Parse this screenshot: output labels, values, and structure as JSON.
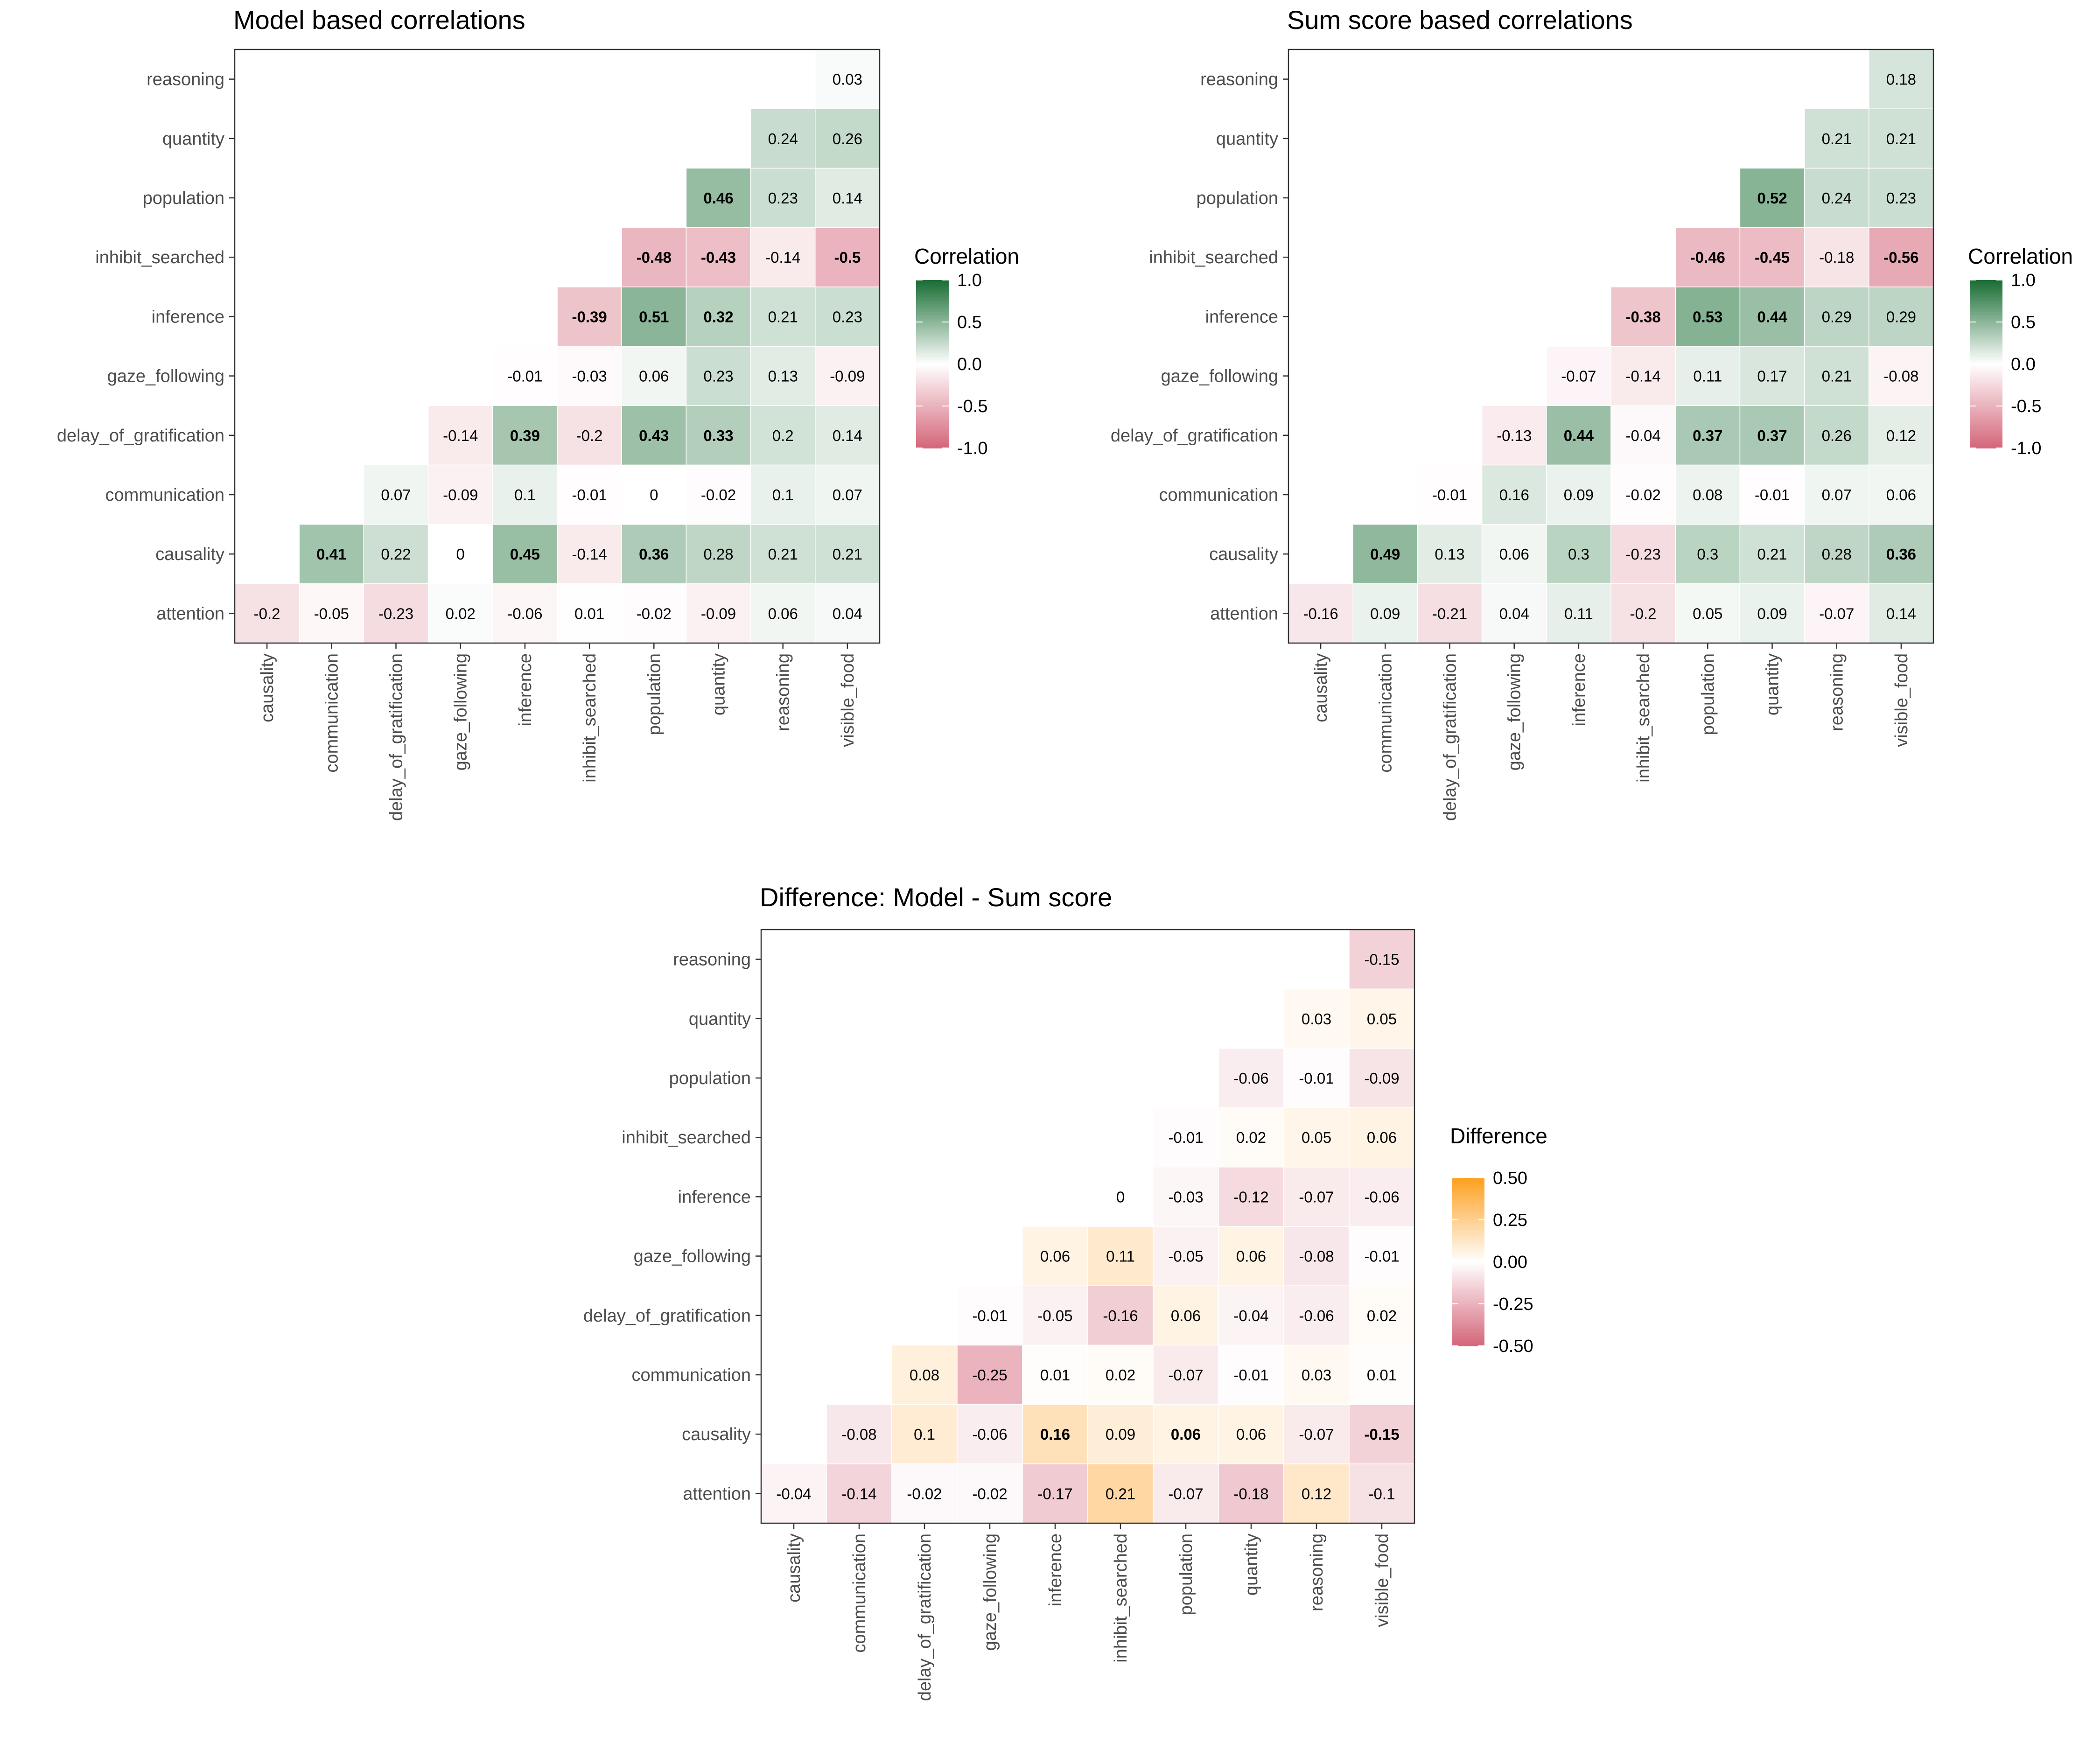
{
  "chart_data": [
    {
      "type": "heatmap",
      "title": "Model based correlations",
      "x_categories": [
        "causality",
        "communication",
        "delay_of_gratification",
        "gaze_following",
        "inference",
        "inhibit_searched",
        "population",
        "quantity",
        "reasoning",
        "visible_food"
      ],
      "y_categories": [
        "attention",
        "causality",
        "communication",
        "delay_of_gratification",
        "gaze_following",
        "inference",
        "inhibit_searched",
        "population",
        "quantity",
        "reasoning"
      ],
      "values": [
        [
          -0.2,
          -0.05,
          -0.23,
          0.02,
          -0.06,
          0.01,
          -0.02,
          -0.09,
          0.06,
          0.04
        ],
        [
          null,
          0.41,
          0.22,
          0,
          0.45,
          -0.14,
          0.36,
          0.28,
          0.21,
          0.21
        ],
        [
          null,
          null,
          0.07,
          -0.09,
          0.1,
          -0.01,
          0,
          -0.02,
          0.1,
          0.07
        ],
        [
          null,
          null,
          null,
          -0.14,
          0.39,
          -0.2,
          0.43,
          0.33,
          0.2,
          0.14
        ],
        [
          null,
          null,
          null,
          null,
          -0.01,
          -0.03,
          0.06,
          0.23,
          0.13,
          -0.09
        ],
        [
          null,
          null,
          null,
          null,
          null,
          -0.39,
          0.51,
          0.32,
          0.21,
          0.23
        ],
        [
          null,
          null,
          null,
          null,
          null,
          null,
          -0.48,
          -0.43,
          -0.14,
          -0.5
        ],
        [
          null,
          null,
          null,
          null,
          null,
          null,
          null,
          0.46,
          0.23,
          0.14
        ],
        [
          null,
          null,
          null,
          null,
          null,
          null,
          null,
          null,
          0.24,
          0.26
        ],
        [
          null,
          null,
          null,
          null,
          null,
          null,
          null,
          null,
          null,
          0.03
        ]
      ],
      "bold": [
        [],
        [
          1,
          4,
          6
        ],
        [],
        [
          4,
          6,
          7
        ],
        [],
        [
          5,
          6,
          7
        ],
        [
          6,
          7,
          9
        ],
        [
          7
        ],
        [],
        []
      ],
      "legend": {
        "title": "Correlation",
        "ticks": [
          "1.0",
          "0.5",
          "0.0",
          "-0.5",
          "-1.0"
        ],
        "tick_values": [
          1.0,
          0.5,
          0.0,
          -0.5,
          -1.0
        ],
        "range": [
          -1,
          1
        ],
        "position": "right"
      },
      "colors": {
        "low": "#d4677a",
        "mid": "#ffffff",
        "high": "#1a6e35"
      },
      "grid": false
    },
    {
      "type": "heatmap",
      "title": "Sum score based correlations",
      "x_categories": [
        "causality",
        "communication",
        "delay_of_gratification",
        "gaze_following",
        "inference",
        "inhibit_searched",
        "population",
        "quantity",
        "reasoning",
        "visible_food"
      ],
      "y_categories": [
        "attention",
        "causality",
        "communication",
        "delay_of_gratification",
        "gaze_following",
        "inference",
        "inhibit_searched",
        "population",
        "quantity",
        "reasoning"
      ],
      "values": [
        [
          -0.16,
          0.09,
          -0.21,
          0.04,
          0.11,
          -0.2,
          0.05,
          0.09,
          -0.07,
          0.14
        ],
        [
          null,
          0.49,
          0.13,
          0.06,
          0.3,
          -0.23,
          0.3,
          0.21,
          0.28,
          0.36
        ],
        [
          null,
          null,
          -0.01,
          0.16,
          0.09,
          -0.02,
          0.08,
          -0.01,
          0.07,
          0.06
        ],
        [
          null,
          null,
          null,
          -0.13,
          0.44,
          -0.04,
          0.37,
          0.37,
          0.26,
          0.12
        ],
        [
          null,
          null,
          null,
          null,
          -0.07,
          -0.14,
          0.11,
          0.17,
          0.21,
          -0.08
        ],
        [
          null,
          null,
          null,
          null,
          null,
          -0.38,
          0.53,
          0.44,
          0.29,
          0.29
        ],
        [
          null,
          null,
          null,
          null,
          null,
          null,
          -0.46,
          -0.45,
          -0.18,
          -0.56
        ],
        [
          null,
          null,
          null,
          null,
          null,
          null,
          null,
          0.52,
          0.24,
          0.23
        ],
        [
          null,
          null,
          null,
          null,
          null,
          null,
          null,
          null,
          0.21,
          0.21
        ],
        [
          null,
          null,
          null,
          null,
          null,
          null,
          null,
          null,
          null,
          0.18
        ]
      ],
      "bold": [
        [],
        [
          1,
          9
        ],
        [],
        [
          4,
          6,
          7
        ],
        [],
        [
          5,
          6,
          7
        ],
        [
          6,
          7,
          9
        ],
        [
          7
        ],
        [],
        []
      ],
      "legend": {
        "title": "Correlation",
        "ticks": [
          "1.0",
          "0.5",
          "0.0",
          "-0.5",
          "-1.0"
        ],
        "tick_values": [
          1.0,
          0.5,
          0.0,
          -0.5,
          -1.0
        ],
        "range": [
          -1,
          1
        ],
        "position": "right"
      },
      "colors": {
        "low": "#d4677a",
        "mid": "#ffffff",
        "high": "#1a6e35"
      },
      "grid": false
    },
    {
      "type": "heatmap",
      "title": "Difference: Model - Sum score",
      "x_categories": [
        "causality",
        "communication",
        "delay_of_gratification",
        "gaze_following",
        "inference",
        "inhibit_searched",
        "population",
        "quantity",
        "reasoning",
        "visible_food"
      ],
      "y_categories": [
        "attention",
        "causality",
        "communication",
        "delay_of_gratification",
        "gaze_following",
        "inference",
        "inhibit_searched",
        "population",
        "quantity",
        "reasoning"
      ],
      "values": [
        [
          -0.04,
          -0.14,
          -0.02,
          -0.02,
          -0.17,
          0.21,
          -0.07,
          -0.18,
          0.12,
          -0.1
        ],
        [
          null,
          -0.08,
          0.1,
          -0.06,
          0.16,
          0.09,
          0.06,
          0.06,
          -0.07,
          -0.15
        ],
        [
          null,
          null,
          0.08,
          -0.25,
          0.01,
          0.02,
          -0.07,
          -0.01,
          0.03,
          0.01
        ],
        [
          null,
          null,
          null,
          -0.01,
          -0.05,
          -0.16,
          0.06,
          -0.04,
          -0.06,
          0.02
        ],
        [
          null,
          null,
          null,
          null,
          0.06,
          0.11,
          -0.05,
          0.06,
          -0.08,
          -0.01
        ],
        [
          null,
          null,
          null,
          null,
          null,
          0,
          -0.03,
          -0.12,
          -0.07,
          -0.06
        ],
        [
          null,
          null,
          null,
          null,
          null,
          null,
          -0.01,
          0.02,
          0.05,
          0.06
        ],
        [
          null,
          null,
          null,
          null,
          null,
          null,
          null,
          -0.06,
          -0.01,
          -0.09
        ],
        [
          null,
          null,
          null,
          null,
          null,
          null,
          null,
          null,
          0.03,
          0.05
        ],
        [
          null,
          null,
          null,
          null,
          null,
          null,
          null,
          null,
          null,
          -0.15
        ]
      ],
      "bold": [
        [],
        [
          4,
          6,
          9
        ],
        [],
        [],
        [],
        [],
        [],
        [],
        [],
        []
      ],
      "legend": {
        "title": "Difference",
        "ticks": [
          "0.50",
          "0.25",
          "0.00",
          "-0.25",
          "-0.50"
        ],
        "tick_values": [
          0.5,
          0.25,
          0.0,
          -0.25,
          -0.5
        ],
        "range": [
          -0.5,
          0.5
        ],
        "position": "right"
      },
      "colors": {
        "low": "#d4677a",
        "mid": "#ffffff",
        "high": "#fda021"
      },
      "grid": false
    }
  ]
}
